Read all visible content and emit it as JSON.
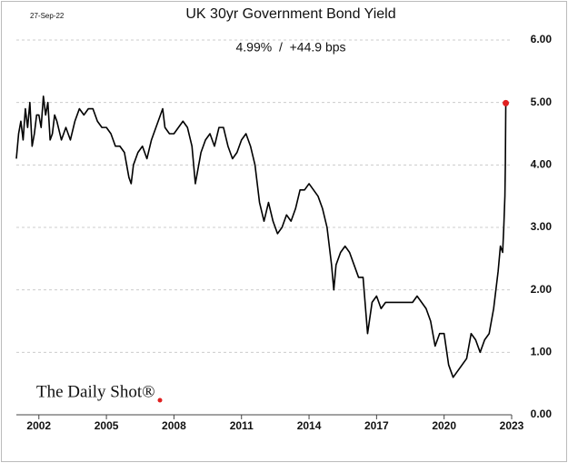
{
  "chart_data": {
    "type": "line",
    "title": "UK 30yr Government Bond Yield",
    "subtitle": "4.99%  /  +44.9 bps",
    "annotations": [
      "27-Sep-22",
      "The Daily Shot®"
    ],
    "x": [
      2001.0,
      2001.1,
      2001.2,
      2001.3,
      2001.4,
      2001.5,
      2001.6,
      2001.7,
      2001.8,
      2001.9,
      2002.0,
      2002.1,
      2002.2,
      2002.3,
      2002.4,
      2002.5,
      2002.6,
      2002.7,
      2002.8,
      2003.0,
      2003.2,
      2003.4,
      2003.6,
      2003.8,
      2004.0,
      2004.2,
      2004.4,
      2004.6,
      2004.8,
      2005.0,
      2005.2,
      2005.4,
      2005.6,
      2005.8,
      2006.0,
      2006.1,
      2006.2,
      2006.4,
      2006.6,
      2006.8,
      2007.0,
      2007.2,
      2007.4,
      2007.5,
      2007.6,
      2007.8,
      2008.0,
      2008.2,
      2008.4,
      2008.6,
      2008.8,
      2008.95,
      2009.2,
      2009.4,
      2009.6,
      2009.8,
      2010.0,
      2010.2,
      2010.4,
      2010.6,
      2010.8,
      2011.0,
      2011.2,
      2011.4,
      2011.6,
      2011.8,
      2012.0,
      2012.2,
      2012.4,
      2012.6,
      2012.8,
      2013.0,
      2013.2,
      2013.4,
      2013.6,
      2013.8,
      2014.0,
      2014.2,
      2014.4,
      2014.6,
      2014.8,
      2015.0,
      2015.1,
      2015.2,
      2015.4,
      2015.6,
      2015.8,
      2016.0,
      2016.2,
      2016.4,
      2016.6,
      2016.8,
      2017.0,
      2017.2,
      2017.4,
      2017.6,
      2017.8,
      2018.0,
      2018.2,
      2018.4,
      2018.6,
      2018.8,
      2019.0,
      2019.2,
      2019.4,
      2019.6,
      2019.8,
      2020.0,
      2020.2,
      2020.4,
      2020.6,
      2020.8,
      2021.0,
      2021.2,
      2021.4,
      2021.6,
      2021.8,
      2022.0,
      2022.2,
      2022.4,
      2022.5,
      2022.6,
      2022.65,
      2022.7,
      2022.72,
      2022.74
    ],
    "values": [
      4.1,
      4.5,
      4.7,
      4.4,
      4.9,
      4.6,
      5.0,
      4.3,
      4.5,
      4.8,
      4.8,
      4.6,
      5.1,
      4.8,
      5.0,
      4.4,
      4.5,
      4.8,
      4.7,
      4.4,
      4.6,
      4.4,
      4.7,
      4.9,
      4.8,
      4.9,
      4.9,
      4.7,
      4.6,
      4.6,
      4.5,
      4.3,
      4.3,
      4.2,
      3.8,
      3.7,
      4.0,
      4.2,
      4.3,
      4.1,
      4.4,
      4.6,
      4.8,
      4.9,
      4.6,
      4.5,
      4.5,
      4.6,
      4.7,
      4.6,
      4.3,
      3.7,
      4.2,
      4.4,
      4.5,
      4.3,
      4.6,
      4.6,
      4.3,
      4.1,
      4.2,
      4.4,
      4.5,
      4.3,
      4.0,
      3.4,
      3.1,
      3.4,
      3.1,
      2.9,
      3.0,
      3.2,
      3.1,
      3.3,
      3.6,
      3.6,
      3.7,
      3.6,
      3.5,
      3.3,
      3.0,
      2.4,
      2.0,
      2.4,
      2.6,
      2.7,
      2.6,
      2.4,
      2.2,
      2.2,
      1.3,
      1.8,
      1.9,
      1.7,
      1.8,
      1.8,
      1.8,
      1.8,
      1.8,
      1.8,
      1.8,
      1.9,
      1.8,
      1.7,
      1.5,
      1.1,
      1.3,
      1.3,
      0.8,
      0.6,
      0.7,
      0.8,
      0.9,
      1.3,
      1.2,
      1.0,
      1.2,
      1.3,
      1.7,
      2.3,
      2.7,
      2.6,
      3.0,
      3.5,
      4.0,
      4.99
    ],
    "color": "#000000",
    "marker_color": "#e02020",
    "xlim": [
      2001,
      2023
    ],
    "xticks": [
      2002,
      2005,
      2008,
      2011,
      2014,
      2017,
      2020,
      2023
    ],
    "ylim": [
      0,
      6
    ],
    "yticks": [
      {
        "value": 0,
        "label": "0.00"
      },
      {
        "value": 1,
        "label": "1.00"
      },
      {
        "value": 2,
        "label": "2.00"
      },
      {
        "value": 3,
        "label": "3.00"
      },
      {
        "value": 4,
        "label": "4.00"
      },
      {
        "value": 5,
        "label": "5.00"
      },
      {
        "value": 6,
        "label": "6.00"
      }
    ],
    "grid": true
  }
}
